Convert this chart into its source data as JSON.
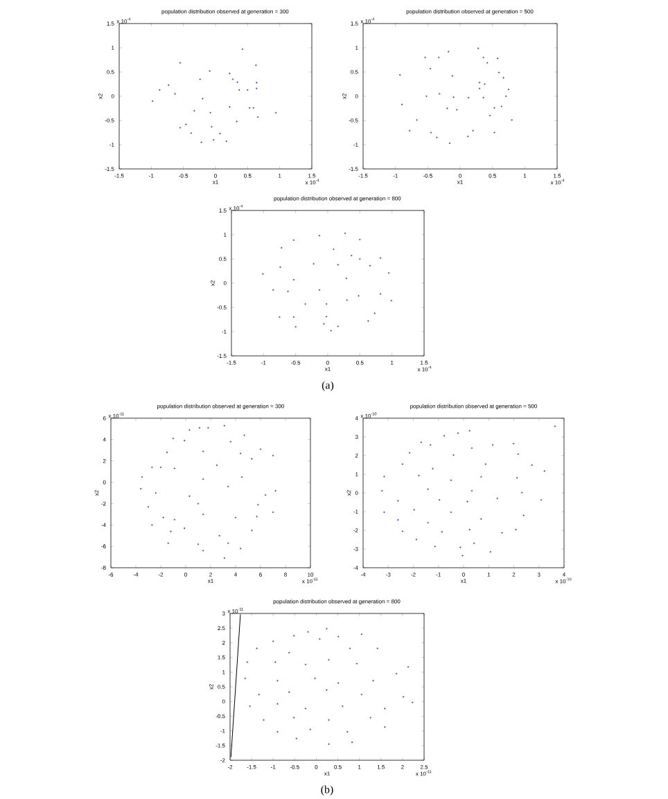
{
  "chart_data": [
    {
      "type": "scatter",
      "title": "population distribution observed at generation = 300",
      "xlabel": "x1",
      "ylabel": "x2",
      "marker": "circle",
      "xlim": [
        -1.5,
        1.5
      ],
      "ylim": [
        -1.5,
        1.5
      ],
      "xticks": [
        -1.5,
        -1,
        -0.5,
        0,
        0.5,
        1,
        1.5
      ],
      "yticks": [
        -1.5,
        -1,
        -0.5,
        0,
        0.5,
        1,
        1.5
      ],
      "annotations": [
        "x 10$^{-4}$",
        "x 10$^{-4}$"
      ],
      "series": [
        {
          "color": "#4a4ac0",
          "x": [
            0.42,
            0.63,
            -0.55,
            -0.73,
            -0.87,
            -0.98,
            -0.63,
            -0.09,
            -0.24,
            -0.2,
            0.22,
            0.27,
            0.34,
            0.37,
            0.5,
            0.64,
            0.64,
            0.53,
            0.59,
            0.66,
            0.94,
            0.22,
            0.33,
            -0.33,
            -0.08,
            -0.06,
            -0.46,
            -0.55,
            -0.38,
            -0.22,
            -0.03,
            0.07,
            0.17
          ],
          "values": [
            0.97,
            0.64,
            0.69,
            0.23,
            0.13,
            -0.1,
            0.05,
            0.52,
            0.35,
            -0.05,
            0.47,
            0.35,
            0.29,
            0.13,
            0.13,
            0.28,
            0.16,
            -0.24,
            -0.24,
            -0.43,
            -0.34,
            -0.22,
            -0.52,
            -0.3,
            -0.34,
            -0.63,
            -0.58,
            -0.65,
            -0.76,
            -0.95,
            -0.9,
            -0.77,
            -0.93
          ]
        }
      ]
    },
    {
      "type": "scatter",
      "title": "population distribution observed at generation = 500",
      "xlabel": "x1",
      "ylabel": "x2",
      "marker": "circle",
      "xlim": [
        -1.5,
        1.5
      ],
      "ylim": [
        -1.5,
        1.5
      ],
      "xticks": [
        -1.5,
        -1,
        -0.5,
        0,
        0.5,
        1,
        1.5
      ],
      "yticks": [
        -1.5,
        -1,
        -0.5,
        0,
        0.5,
        1,
        1.5
      ],
      "annotations": [
        "x 10$^{-4}$",
        "x 10$^{-4}$"
      ],
      "series": [
        {
          "color": "#4a4ac0",
          "x": [
            0.28,
            -0.18,
            -0.54,
            -0.33,
            0.36,
            0.58,
            0.42,
            -0.93,
            -0.46,
            -0.12,
            0.6,
            0.67,
            0.3,
            0.3,
            0.38,
            0.75,
            -0.9,
            -0.52,
            -0.32,
            -0.1,
            0.13,
            0.36,
            0.71,
            -0.2,
            -0.05,
            0.53,
            0.64,
            -0.67,
            0.46,
            0.8,
            -0.45,
            -0.36,
            -0.16,
            0.12,
            0.2,
            0.53,
            -0.78
          ],
          "values": [
            0.99,
            0.92,
            0.8,
            0.8,
            0.8,
            0.78,
            0.69,
            0.44,
            0.57,
            0.42,
            0.49,
            0.38,
            0.28,
            0.16,
            0.25,
            0.14,
            -0.17,
            0,
            0.05,
            -0.02,
            -0.03,
            -0.03,
            0,
            -0.25,
            -0.28,
            -0.24,
            -0.21,
            -0.49,
            -0.4,
            -0.49,
            -0.75,
            -0.85,
            -0.97,
            -0.83,
            -0.71,
            -0.75,
            -0.71
          ]
        }
      ]
    },
    {
      "type": "scatter",
      "title": "population distribution observed at generation = 800",
      "xlabel": "x1",
      "ylabel": "x2",
      "marker": "circle",
      "xlim": [
        -1.5,
        1.5
      ],
      "ylim": [
        -1.5,
        1.5
      ],
      "xticks": [
        -1.5,
        -1,
        -0.5,
        0,
        0.5,
        1,
        1.5
      ],
      "yticks": [
        -1.5,
        -1,
        -0.5,
        0,
        0.5,
        1,
        1.5
      ],
      "annotations": [
        "x 10$^{-4}$",
        "x 10$^{-4}$",
        "(a)"
      ],
      "series": [
        {
          "color": "#4a4ac0",
          "x": [
            0.27,
            -0.13,
            -0.53,
            0.5,
            -0.72,
            0.09,
            0.37,
            0.5,
            0.82,
            -1.01,
            -0.74,
            -0.22,
            0.16,
            0.66,
            0.95,
            -0.53,
            0.29,
            -0.85,
            -0.62,
            -0.13,
            0.48,
            0.82,
            0.99,
            -0.35,
            -0.02,
            0.3,
            -0.75,
            -0.53,
            -0.02,
            0.63,
            -0.5,
            -0.06,
            0.16,
            0.05,
            0.73
          ],
          "values": [
            1.03,
            0.98,
            0.89,
            0.9,
            0.73,
            0.7,
            0.57,
            0.5,
            0.52,
            0.19,
            0.33,
            0.4,
            0.38,
            0.36,
            0.21,
            0.07,
            0.1,
            -0.14,
            -0.17,
            -0.14,
            -0.26,
            -0.22,
            -0.36,
            -0.43,
            -0.43,
            -0.35,
            -0.7,
            -0.7,
            -0.69,
            -0.78,
            -0.9,
            -0.84,
            -0.89,
            -0.98,
            -0.62
          ]
        }
      ]
    },
    {
      "type": "scatter",
      "title": "population distribution observed at generation = 300",
      "xlabel": "x1",
      "ylabel": "x2",
      "marker": "circle",
      "xlim": [
        -6,
        10
      ],
      "ylim": [
        -8,
        6
      ],
      "xticks": [
        -6,
        -4,
        -2,
        0,
        2,
        4,
        6,
        8,
        10
      ],
      "yticks": [
        -8,
        -6,
        -4,
        -2,
        0,
        2,
        4,
        6
      ],
      "annotations": [
        "x 10$^{-11}$",
        "x 10$^{-11}$"
      ],
      "series": [
        {
          "color": "#4a4ac0",
          "x": [
            1.1,
            1.8,
            3.1,
            0.3,
            -1.0,
            -0.1,
            3.6,
            4.7,
            6.0,
            7.0,
            -1.5,
            1.4,
            4.4,
            5.3,
            -2.7,
            -2.0,
            -0.9,
            2.5,
            -3.5,
            1.4,
            3.4,
            4.5,
            6.4,
            7.2,
            -3.6,
            -2.4,
            0.3,
            1.0,
            5.8,
            7.0,
            -3.0,
            -1.8,
            -0.9,
            1.4,
            4.0,
            5.7,
            -2.7,
            -0.1,
            5.3,
            -1.2,
            2.7,
            -1.4,
            1.0,
            3.4,
            4.4,
            1.4,
            3.1
          ],
          "values": [
            5.1,
            5.1,
            5.3,
            4.9,
            4.1,
            3.9,
            3.8,
            4.4,
            3.1,
            2.5,
            2.8,
            2.9,
            2.7,
            2.2,
            1.4,
            1.4,
            1.3,
            1.6,
            0.5,
            0.3,
            -0.4,
            0.5,
            -1.2,
            -0.8,
            -0.6,
            -1.0,
            -1.3,
            -2.0,
            -2.1,
            -2.8,
            -2.3,
            -3.3,
            -3.5,
            -3.0,
            -3.3,
            -3.2,
            -4.0,
            -4.3,
            -4.5,
            -4.6,
            -5.0,
            -5.7,
            -5.8,
            -5.7,
            -6.2,
            -6.4,
            -7.1
          ]
        }
      ]
    },
    {
      "type": "scatter",
      "title": "population distribution observed at generation = 500",
      "xlabel": "x1",
      "ylabel": "x2",
      "marker": "circle",
      "xlim": [
        -4,
        4
      ],
      "ylim": [
        -4,
        4
      ],
      "xticks": [
        -4,
        -3,
        -2,
        -1,
        0,
        1,
        2,
        3,
        4
      ],
      "yticks": [
        -4,
        -3,
        -2,
        -1,
        0,
        1,
        2,
        3,
        4
      ],
      "annotations": [
        "x 10$^{-10}$",
        "x 10$^{-10}$"
      ],
      "series": [
        {
          "color": "#4a4ac0",
          "x": [
            3.64,
            0.24,
            -0.22,
            -0.77,
            -1.69,
            -1.32,
            1.16,
            1.99,
            0.33,
            -2.15,
            -0.4,
            2.17,
            -2.43,
            -1.23,
            0.88,
            2.72,
            -3.16,
            -1.78,
            -0.5,
            0.7,
            2.13,
            3.22,
            -3.25,
            -1.42,
            0.33,
            2.32,
            -2.61,
            -0.96,
            0.15,
            1.34,
            3.09,
            -3.16,
            -1.97,
            -0.5,
            0.7,
            2.39,
            -2.61,
            -1.42,
            -2.43,
            -0.86,
            0.24,
            2.08,
            1.53,
            -1.88,
            -1.14,
            -0.13,
            0.42,
            1.07,
            -0.04
          ],
          "values": [
            3.57,
            3.33,
            3.2,
            3.06,
            2.71,
            2.57,
            2.57,
            2.64,
            2.4,
            2.15,
            2.03,
            2.08,
            1.54,
            1.3,
            1.54,
            1.49,
            0.88,
            0.93,
            0.68,
            0.86,
            0.81,
            1.17,
            0.12,
            0.2,
            0.12,
            0.02,
            -0.42,
            -0.37,
            -0.46,
            -0.29,
            -0.37,
            -1.03,
            -0.9,
            -1.03,
            -1.39,
            -1.2,
            -1.44,
            -1.59,
            -2.05,
            -2.08,
            -1.96,
            -1.96,
            -2.13,
            -2.49,
            -2.86,
            -2.91,
            -2.69,
            -3.15,
            -3.35
          ]
        }
      ]
    },
    {
      "type": "scatter",
      "title": "population distribution observed at generation = 800",
      "xlabel": "x1",
      "ylabel": "x2",
      "marker": "circle",
      "xlim": [
        -2,
        2.5
      ],
      "ylim": [
        -2,
        3
      ],
      "xticks": [
        -2,
        -1.5,
        -1,
        -0.5,
        0,
        0.5,
        1,
        1.5,
        2,
        2.5
      ],
      "yticks": [
        -2,
        -1.5,
        -1,
        -0.5,
        0,
        0.5,
        1,
        1.5,
        2,
        2.5,
        3
      ],
      "annotations": [
        "x 10$^{-11}$",
        "x 10$^{-11}$",
        "(b)"
      ],
      "series": [
        {
          "color": "#4a4ac0",
          "x": [
            0.24,
            -0.19,
            -0.52,
            1.05,
            -1.0,
            0.08,
            0.51,
            -1.38,
            -0.63,
            0.78,
            1.42,
            -1.6,
            -0.95,
            -0.25,
            0.29,
            0.94,
            2.13,
            -1.65,
            -0.9,
            -0.03,
            0.51,
            1.32,
            1.86,
            -1.33,
            -0.63,
            0.24,
            1.05,
            2.02,
            -1.54,
            -0.9,
            -0.25,
            0.61,
            1.59,
            2.23,
            -1.22,
            -0.52,
            0.29,
            1.26,
            -0.9,
            -0.14,
            0.72,
            1.59,
            -0.46,
            0.29,
            0.83
          ],
          "values": [
            2.48,
            2.37,
            2.24,
            2.29,
            2.05,
            2.13,
            2.21,
            1.81,
            1.66,
            1.81,
            1.81,
            1.34,
            1.34,
            1.26,
            1.42,
            1.29,
            1.18,
            0.79,
            0.71,
            0.79,
            0.63,
            0.71,
            0.95,
            0.24,
            0.32,
            0.39,
            0.24,
            0.16,
            -0.16,
            -0.08,
            -0.24,
            -0.16,
            -0.24,
            -0.03,
            -0.63,
            -0.55,
            -0.63,
            -0.55,
            -1.03,
            -0.95,
            -1.03,
            -0.87,
            -1.26,
            -1.45,
            -1.39
          ]
        },
        {
          "type": "line",
          "marker": "none",
          "color": "#000000",
          "x": [
            -1.98,
            -1.76
          ],
          "values": [
            -1.9,
            2.97
          ]
        }
      ]
    }
  ]
}
